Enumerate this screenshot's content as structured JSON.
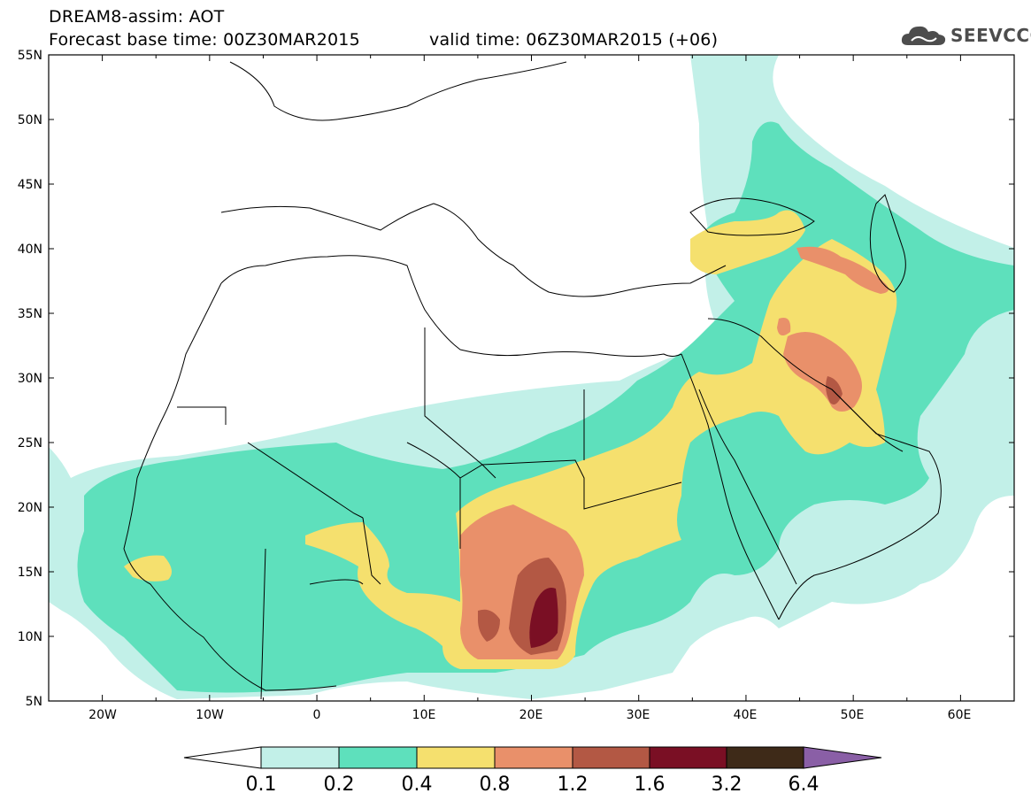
{
  "header": {
    "title_line1": "DREAM8-assim: AOT",
    "title_line2_left": "Forecast base time: 00Z30MAR2015",
    "title_line2_right": "valid time: 06Z30MAR2015 (+06)"
  },
  "logo": {
    "text": "SEEVCCC",
    "icon": "cloud-icon",
    "color": "#4d4d4d"
  },
  "map": {
    "lat_labels": [
      "55N",
      "50N",
      "45N",
      "40N",
      "35N",
      "30N",
      "25N",
      "20N",
      "15N",
      "10N",
      "5N"
    ],
    "lon_labels": [
      "20W",
      "10W",
      "0",
      "10E",
      "20E",
      "30E",
      "40E",
      "50E",
      "60E"
    ],
    "lon_range": [
      -25,
      65
    ],
    "lat_range": [
      5,
      55
    ]
  },
  "colorbar": {
    "labels": [
      "0.1",
      "0.2",
      "0.4",
      "0.8",
      "1.2",
      "1.6",
      "3.2",
      "6.4"
    ],
    "colors": [
      "#c2f0e8",
      "#5ee0bc",
      "#f5e06e",
      "#e9906a",
      "#b35844",
      "#7a0f24",
      "#3e2a18",
      "#8a5fa6"
    ],
    "under_color": "#ffffff"
  },
  "fill_colors": {
    "c01": "#c2f0e8",
    "c02": "#5ee0bc",
    "c04": "#f5e06e",
    "c08": "#e9906a",
    "c12": "#b35844",
    "c16": "#7a0f24"
  }
}
